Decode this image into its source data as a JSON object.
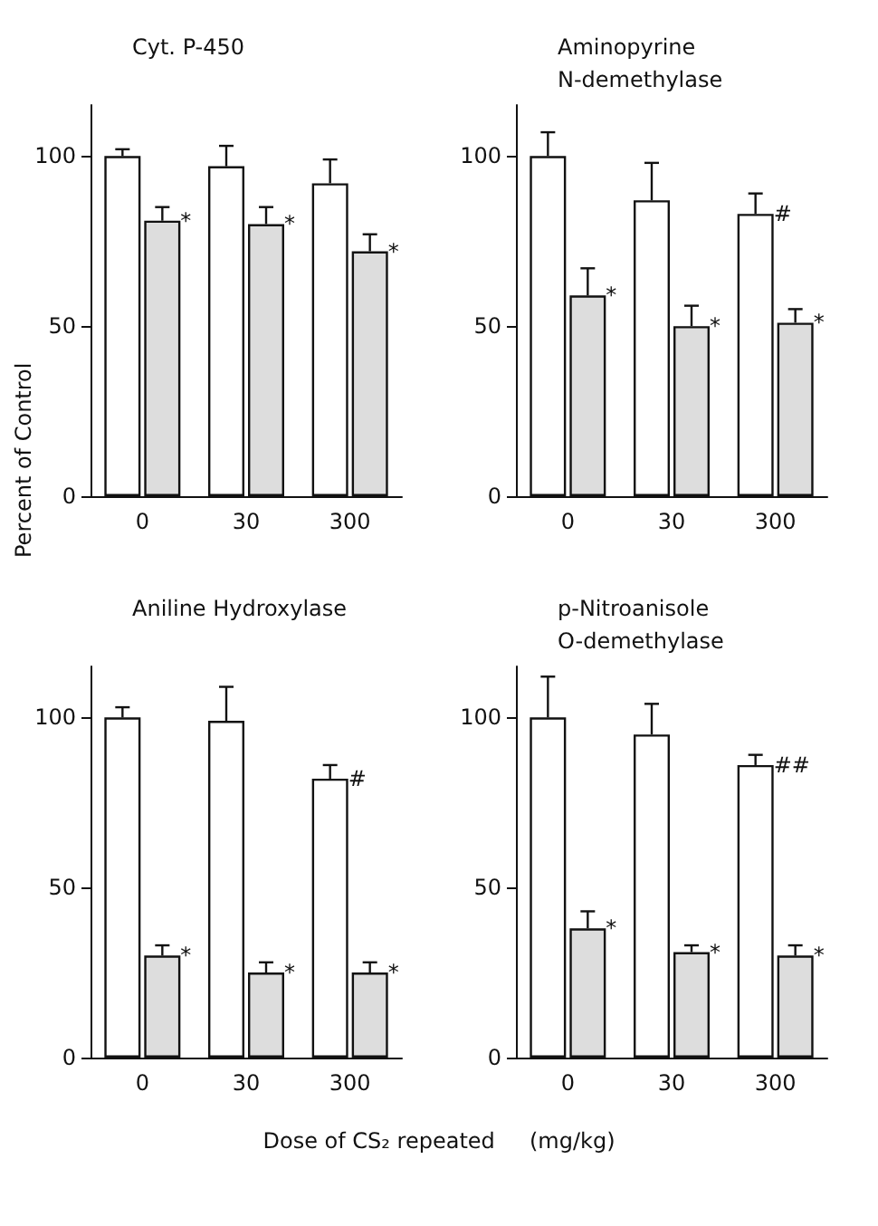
{
  "chart_data": [
    {
      "type": "bar",
      "title": "Cyt. P-450",
      "categories": [
        "0",
        "30",
        "300"
      ],
      "ylim": [
        0,
        115
      ],
      "yticks": [
        0,
        50,
        100
      ],
      "grid": false,
      "series": [
        {
          "color": "#ffffff",
          "values": [
            100,
            97,
            92
          ],
          "errors": [
            [
              100,
              102
            ],
            [
              97,
              103
            ],
            [
              92,
              99
            ]
          ],
          "value_labels": [
            null,
            null,
            null
          ]
        },
        {
          "color": "#dddddd",
          "values": [
            81,
            80,
            72
          ],
          "errors": [
            [
              81,
              85
            ],
            [
              80,
              85
            ],
            [
              72,
              77
            ]
          ],
          "value_labels": [
            "*",
            "*",
            "*"
          ]
        }
      ]
    },
    {
      "type": "bar",
      "title": "Aminopyrine N-demethylase",
      "categories": [
        "0",
        "30",
        "300"
      ],
      "ylim": [
        0,
        115
      ],
      "yticks": [
        0,
        50,
        100
      ],
      "grid": false,
      "series": [
        {
          "color": "#ffffff",
          "values": [
            100,
            87,
            83
          ],
          "errors": [
            [
              100,
              107
            ],
            [
              87,
              98
            ],
            [
              83,
              89
            ]
          ],
          "value_labels": [
            null,
            null,
            "#"
          ]
        },
        {
          "color": "#dddddd",
          "values": [
            59,
            50,
            51
          ],
          "errors": [
            [
              59,
              67
            ],
            [
              50,
              56
            ],
            [
              51,
              55
            ]
          ],
          "value_labels": [
            "*",
            "*",
            "*"
          ]
        }
      ]
    },
    {
      "type": "bar",
      "title": "Aniline Hydroxylase",
      "categories": [
        "0",
        "30",
        "300"
      ],
      "ylim": [
        0,
        115
      ],
      "yticks": [
        0,
        50,
        100
      ],
      "grid": false,
      "ylabel": "Percent of Control",
      "xlabel": "Dose of CS₂ repeated     (mg/kg)",
      "series": [
        {
          "color": "#ffffff",
          "values": [
            100,
            99,
            82
          ],
          "errors": [
            [
              100,
              103
            ],
            [
              99,
              109
            ],
            [
              82,
              86
            ]
          ],
          "value_labels": [
            null,
            null,
            "#"
          ]
        },
        {
          "color": "#dddddd",
          "values": [
            30,
            25,
            25
          ],
          "errors": [
            [
              30,
              33
            ],
            [
              25,
              28
            ],
            [
              25,
              28
            ]
          ],
          "value_labels": [
            "*",
            "*",
            "*"
          ]
        }
      ]
    },
    {
      "type": "bar",
      "title": "p-Nitroanisole O-demethylase",
      "categories": [
        "0",
        "30",
        "300"
      ],
      "ylim": [
        0,
        115
      ],
      "yticks": [
        0,
        50,
        100
      ],
      "grid": false,
      "series": [
        {
          "color": "#ffffff",
          "values": [
            100,
            95,
            86
          ],
          "errors": [
            [
              100,
              112
            ],
            [
              95,
              104
            ],
            [
              86,
              89
            ]
          ],
          "value_labels": [
            null,
            null,
            "##"
          ]
        },
        {
          "color": "#dddddd",
          "values": [
            38,
            31,
            30
          ],
          "errors": [
            [
              38,
              43
            ],
            [
              31,
              33
            ],
            [
              30,
              33
            ]
          ],
          "value_labels": [
            "*",
            "*",
            "*"
          ]
        }
      ]
    }
  ]
}
